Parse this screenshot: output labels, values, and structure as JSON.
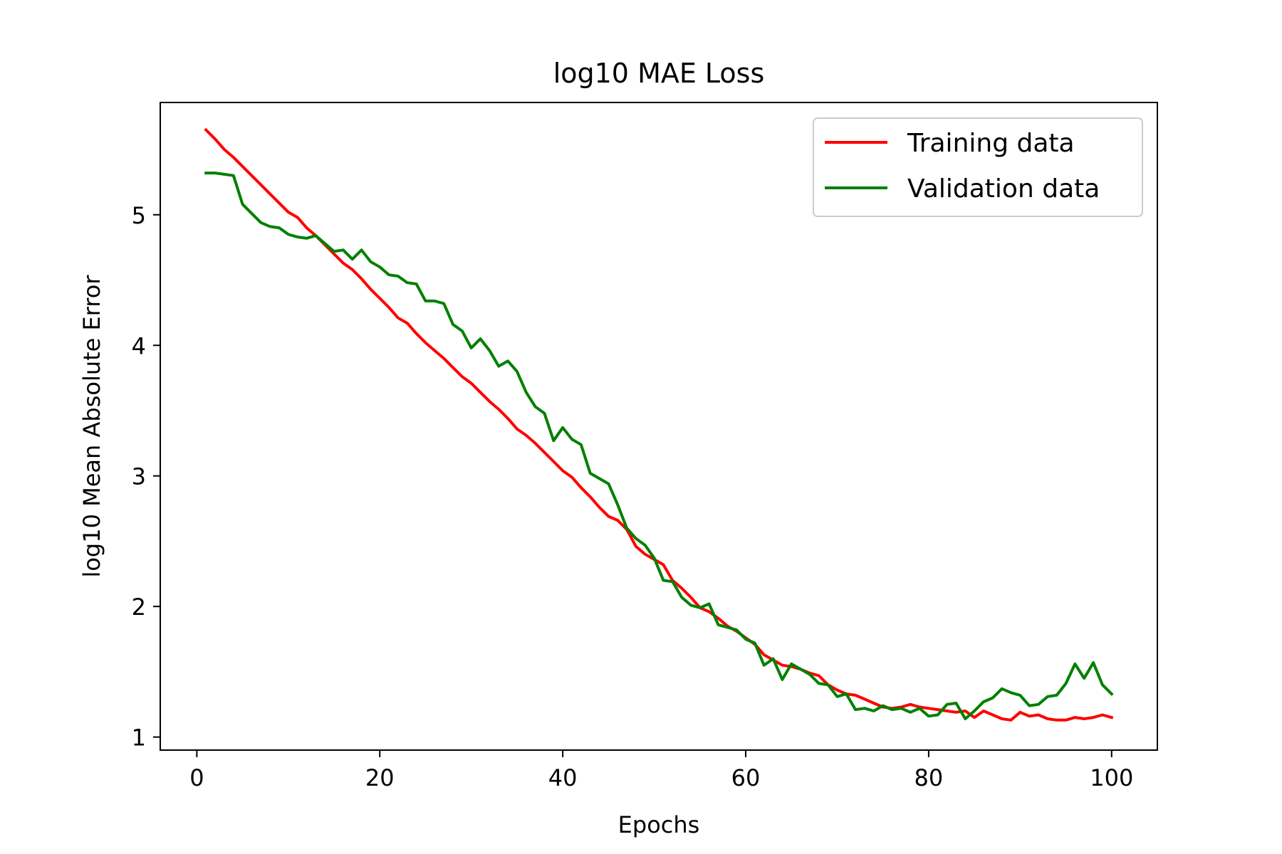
{
  "chart_data": {
    "type": "line",
    "title": "log10 MAE Loss",
    "xlabel": "Epochs",
    "ylabel": "log10 Mean Absolute Error",
    "xlim": [
      -4,
      105
    ],
    "ylim": [
      0.9,
      5.86
    ],
    "xticks": [
      0,
      20,
      40,
      60,
      80,
      100
    ],
    "yticks": [
      1,
      2,
      3,
      4,
      5
    ],
    "grid": false,
    "legend_position": "upper right",
    "x": [
      1,
      2,
      3,
      4,
      5,
      6,
      7,
      8,
      9,
      10,
      11,
      12,
      13,
      14,
      15,
      16,
      17,
      18,
      19,
      20,
      21,
      22,
      23,
      24,
      25,
      26,
      27,
      28,
      29,
      30,
      31,
      32,
      33,
      34,
      35,
      36,
      37,
      38,
      39,
      40,
      41,
      42,
      43,
      44,
      45,
      46,
      47,
      48,
      49,
      50,
      51,
      52,
      53,
      54,
      55,
      56,
      57,
      58,
      59,
      60,
      61,
      62,
      63,
      64,
      65,
      66,
      67,
      68,
      69,
      70,
      71,
      72,
      73,
      74,
      75,
      76,
      77,
      78,
      79,
      80,
      81,
      82,
      83,
      84,
      85,
      86,
      87,
      88,
      89,
      90,
      91,
      92,
      93,
      94,
      95,
      96,
      97,
      98,
      99,
      100
    ],
    "series": [
      {
        "name": "Training data",
        "color": "#ff0000",
        "values": [
          5.65,
          5.58,
          5.5,
          5.44,
          5.37,
          5.3,
          5.23,
          5.16,
          5.09,
          5.02,
          4.98,
          4.9,
          4.84,
          4.77,
          4.7,
          4.63,
          4.58,
          4.51,
          4.43,
          4.36,
          4.29,
          4.21,
          4.17,
          4.09,
          4.02,
          3.96,
          3.9,
          3.83,
          3.76,
          3.71,
          3.64,
          3.57,
          3.51,
          3.44,
          3.36,
          3.31,
          3.25,
          3.18,
          3.11,
          3.04,
          2.99,
          2.91,
          2.84,
          2.76,
          2.69,
          2.66,
          2.59,
          2.46,
          2.4,
          2.36,
          2.32,
          2.2,
          2.14,
          2.07,
          1.99,
          1.96,
          1.91,
          1.85,
          1.81,
          1.76,
          1.71,
          1.63,
          1.59,
          1.55,
          1.54,
          1.52,
          1.49,
          1.47,
          1.4,
          1.36,
          1.33,
          1.32,
          1.29,
          1.26,
          1.23,
          1.22,
          1.23,
          1.25,
          1.23,
          1.22,
          1.21,
          1.2,
          1.19,
          1.2,
          1.15,
          1.2,
          1.17,
          1.14,
          1.13,
          1.19,
          1.16,
          1.17,
          1.14,
          1.13,
          1.13,
          1.15,
          1.14,
          1.15,
          1.17,
          1.15
        ]
      },
      {
        "name": "Validation data",
        "color": "#008000",
        "values": [
          5.32,
          5.32,
          5.31,
          5.3,
          5.08,
          5.01,
          4.94,
          4.91,
          4.9,
          4.85,
          4.83,
          4.82,
          4.84,
          4.78,
          4.72,
          4.73,
          4.66,
          4.73,
          4.64,
          4.6,
          4.54,
          4.53,
          4.48,
          4.47,
          4.34,
          4.34,
          4.32,
          4.16,
          4.11,
          3.98,
          4.05,
          3.96,
          3.84,
          3.88,
          3.8,
          3.64,
          3.53,
          3.48,
          3.27,
          3.37,
          3.28,
          3.24,
          3.02,
          2.98,
          2.94,
          2.78,
          2.6,
          2.52,
          2.47,
          2.37,
          2.2,
          2.19,
          2.07,
          2.01,
          1.99,
          2.02,
          1.86,
          1.84,
          1.82,
          1.75,
          1.72,
          1.55,
          1.6,
          1.44,
          1.56,
          1.52,
          1.48,
          1.41,
          1.4,
          1.31,
          1.33,
          1.21,
          1.22,
          1.2,
          1.24,
          1.21,
          1.22,
          1.19,
          1.22,
          1.16,
          1.17,
          1.25,
          1.26,
          1.14,
          1.2,
          1.27,
          1.3,
          1.37,
          1.34,
          1.32,
          1.24,
          1.25,
          1.31,
          1.32,
          1.41,
          1.56,
          1.45,
          1.57,
          1.4,
          1.33
        ]
      }
    ]
  }
}
